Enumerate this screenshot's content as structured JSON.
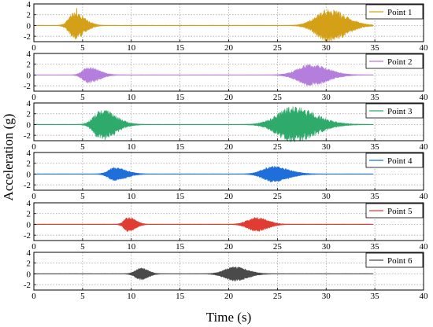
{
  "chart_data": {
    "type": "line",
    "xlabel": "Time (s)",
    "ylabel": "Acceleration (g)",
    "xlim": [
      0,
      40
    ],
    "ylim": [
      -3,
      4
    ],
    "x_ticks": [
      "0",
      "5",
      "10",
      "15",
      "20",
      "25",
      "30",
      "35",
      "40"
    ],
    "y_ticks": [
      "-2",
      "0",
      "2",
      "4"
    ],
    "grid": true,
    "legend_position": "top-right",
    "signal_end_time": 34.8,
    "panels": [
      {
        "name": "Point 1",
        "color": "#D4A017",
        "bursts": [
          {
            "t": 4.2,
            "peak": 1.9,
            "pre": 0.8,
            "post": 1.4
          },
          {
            "t": 30.3,
            "peak": 2.3,
            "pre": 1.8,
            "post": 2.4
          }
        ],
        "spikes": [
          {
            "t": 4.4,
            "max": 3.2,
            "min": -0.3
          }
        ],
        "noise": 0.35
      },
      {
        "name": "Point 2",
        "color": "#B57EDC",
        "bursts": [
          {
            "t": 5.6,
            "peak": 1.2,
            "pre": 0.8,
            "post": 1.5
          },
          {
            "t": 28.4,
            "peak": 1.6,
            "pre": 1.8,
            "post": 2.4
          }
        ],
        "spikes": [],
        "noise": 0.25
      },
      {
        "name": "Point 3",
        "color": "#2EAA6A",
        "bursts": [
          {
            "t": 6.9,
            "peak": 2.2,
            "pre": 1.0,
            "post": 2.0
          },
          {
            "t": 26.6,
            "peak": 2.5,
            "pre": 2.2,
            "post": 3.2
          }
        ],
        "spikes": [],
        "noise": 0.35
      },
      {
        "name": "Point 4",
        "color": "#1E6FD9",
        "bursts": [
          {
            "t": 8.3,
            "peak": 1.0,
            "pre": 0.9,
            "post": 1.6
          },
          {
            "t": 24.5,
            "peak": 1.2,
            "pre": 1.4,
            "post": 2.2
          }
        ],
        "spikes": [],
        "noise": 0.22
      },
      {
        "name": "Point 5",
        "color": "#E03C31",
        "bursts": [
          {
            "t": 9.7,
            "peak": 1.1,
            "pre": 0.6,
            "post": 1.0
          },
          {
            "t": 22.8,
            "peak": 1.1,
            "pre": 1.2,
            "post": 1.6
          }
        ],
        "spikes": [],
        "noise": 0.22
      },
      {
        "name": "Point 6",
        "color": "#4A4A4A",
        "bursts": [
          {
            "t": 11.0,
            "peak": 0.9,
            "pre": 0.8,
            "post": 1.0
          },
          {
            "t": 20.6,
            "peak": 1.1,
            "pre": 1.4,
            "post": 1.8
          }
        ],
        "spikes": [],
        "noise": 0.2
      }
    ]
  }
}
